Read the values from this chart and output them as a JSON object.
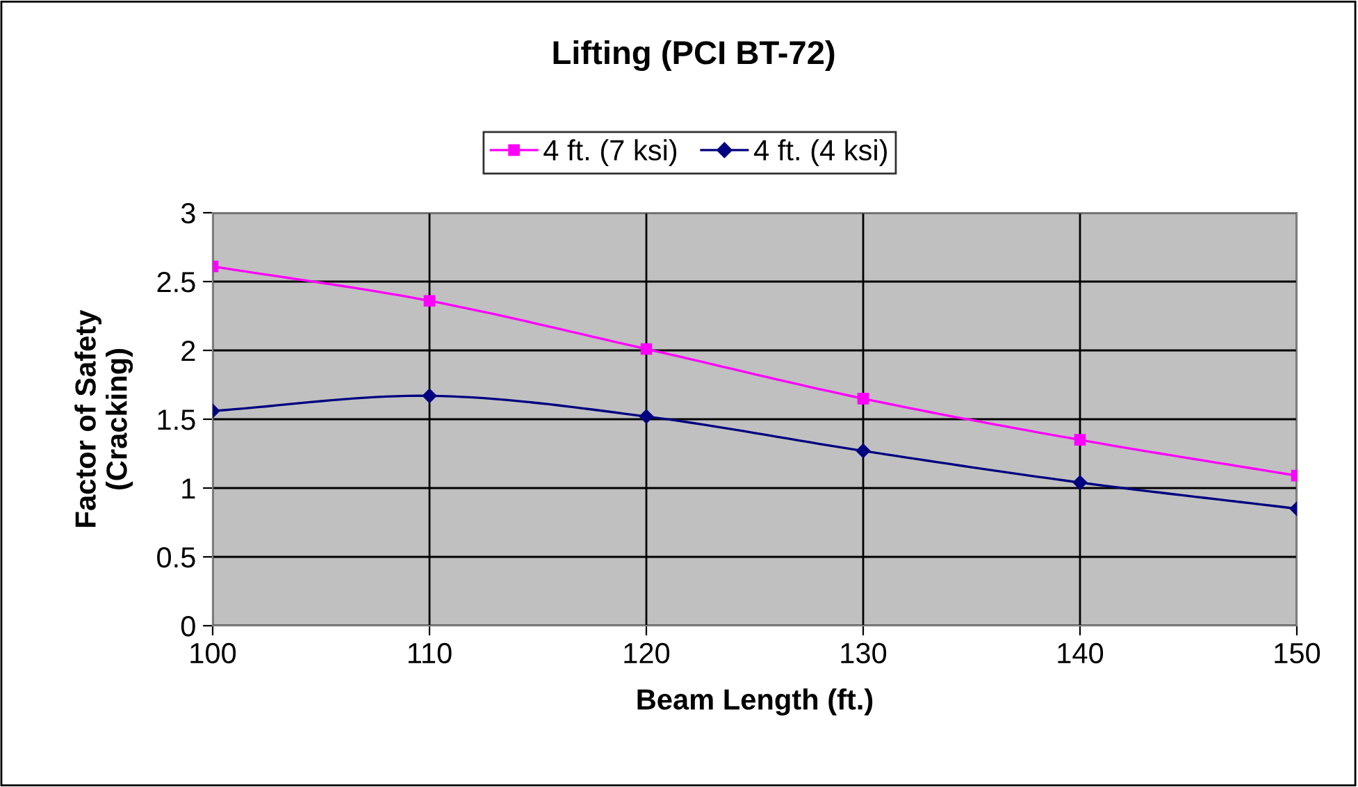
{
  "chart_data": {
    "type": "line",
    "title": "Lifting (PCI BT-72)",
    "xlabel": "Beam Length (ft.)",
    "ylabel": "Factor of Safety\n(Cracking)",
    "x": [
      100,
      110,
      120,
      130,
      140,
      150
    ],
    "series": [
      {
        "name": "4 ft. (7 ksi)",
        "color": "#ff00ff",
        "marker": "square",
        "values": [
          2.61,
          2.36,
          2.01,
          1.65,
          1.35,
          1.09
        ]
      },
      {
        "name": "4 ft. (4 ksi)",
        "color": "#000080",
        "marker": "diamond",
        "values": [
          1.56,
          1.67,
          1.52,
          1.27,
          1.04,
          0.85
        ]
      }
    ],
    "xlim": [
      100,
      150
    ],
    "xticks": [
      100,
      110,
      120,
      130,
      140,
      150
    ],
    "ylim": [
      0,
      3
    ],
    "yticks": [
      0,
      0.5,
      1,
      1.5,
      2,
      2.5,
      3
    ],
    "grid": true,
    "legend": "top",
    "line_style": "solid"
  }
}
